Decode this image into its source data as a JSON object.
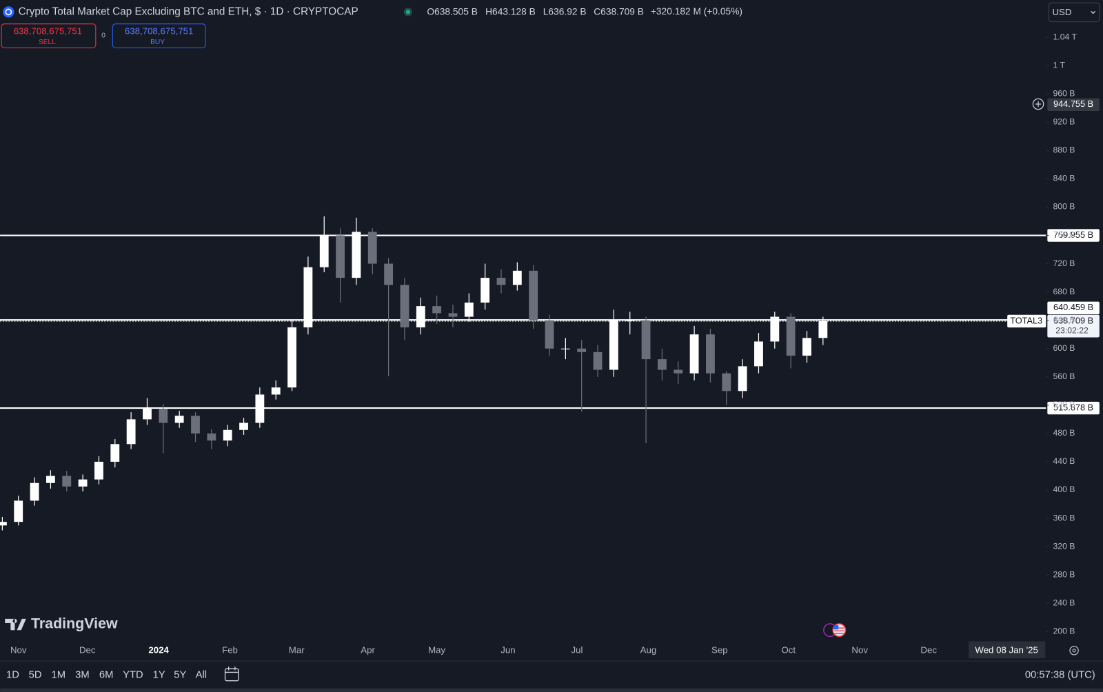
{
  "chart_data": {
    "type": "candlestick",
    "title": "Crypto Total Market Cap Excluding BTC and ETH, $ · 1D · CRYPTOCAP",
    "ohlc_legend": [
      {
        "key": "O",
        "value": "638.505 B"
      },
      {
        "key": "H",
        "value": "643.128 B"
      },
      {
        "key": "L",
        "value": "636.92 B"
      },
      {
        "key": "C",
        "value": "638.709 B"
      }
    ],
    "change": "+320.182 M (+0.05%)",
    "sell": {
      "price": "638,708,675,751",
      "label": "SELL"
    },
    "spread": "0",
    "buy": {
      "price": "638,708,675,751",
      "label": "BUY"
    },
    "currency": "USD",
    "up_color": "#ffffff",
    "down_color": "#6b6f7b",
    "x": [
      -7,
      0,
      7,
      14,
      21,
      28,
      35,
      42,
      49,
      56,
      63,
      70,
      77,
      84,
      91,
      98,
      105,
      112,
      119,
      126,
      133,
      140,
      147,
      154,
      161,
      168,
      175,
      182,
      189,
      196,
      203,
      210,
      217,
      224,
      231,
      238,
      245,
      252,
      259,
      266,
      273,
      280,
      287,
      294,
      301,
      308,
      315,
      322,
      329,
      336,
      343,
      350
    ],
    "open": [
      350,
      355,
      385,
      410,
      420,
      405,
      415,
      440,
      465,
      500,
      515,
      495,
      505,
      480,
      470,
      485,
      495,
      535,
      545,
      630,
      715,
      760,
      700,
      765,
      720,
      690,
      630,
      660,
      650,
      645,
      665,
      700,
      690,
      710,
      640,
      600,
      600,
      595,
      570,
      640,
      640,
      585,
      570,
      565,
      620,
      565,
      540,
      575,
      610,
      645,
      590,
      615
    ],
    "high": [
      362,
      392,
      418,
      428,
      427,
      422,
      448,
      472,
      510,
      530,
      522,
      512,
      510,
      486,
      492,
      502,
      545,
      555,
      640,
      730,
      787,
      770,
      785,
      770,
      728,
      700,
      672,
      675,
      662,
      678,
      720,
      712,
      722,
      718,
      648,
      615,
      612,
      605,
      655,
      652,
      645,
      600,
      582,
      632,
      628,
      568,
      585,
      622,
      652,
      650,
      625,
      645
    ],
    "low": [
      343,
      350,
      378,
      402,
      398,
      398,
      408,
      432,
      458,
      492,
      452,
      488,
      468,
      458,
      462,
      478,
      488,
      528,
      540,
      620,
      708,
      665,
      690,
      705,
      561,
      612,
      620,
      635,
      630,
      638,
      655,
      678,
      682,
      628,
      590,
      585,
      511,
      560,
      560,
      620,
      466,
      555,
      550,
      555,
      552,
      520,
      530,
      565,
      600,
      572,
      580,
      605
    ],
    "close": [
      355,
      385,
      410,
      420,
      405,
      415,
      440,
      465,
      500,
      515,
      495,
      505,
      480,
      470,
      485,
      495,
      535,
      545,
      630,
      715,
      760,
      700,
      765,
      720,
      690,
      630,
      660,
      650,
      645,
      665,
      700,
      690,
      710,
      640,
      600,
      600,
      595,
      570,
      640,
      640,
      585,
      570,
      565,
      620,
      565,
      540,
      575,
      610,
      645,
      590,
      615,
      638.709
    ],
    "xlim": [
      -8,
      447
    ],
    "xticks": [
      {
        "value": 0,
        "label": "Nov"
      },
      {
        "value": 30,
        "label": "Dec"
      },
      {
        "value": 61,
        "label": "2024"
      },
      {
        "value": 92,
        "label": "Feb"
      },
      {
        "value": 121,
        "label": "Mar"
      },
      {
        "value": 152,
        "label": "Apr"
      },
      {
        "value": 182,
        "label": "May"
      },
      {
        "value": 213,
        "label": "Jun"
      },
      {
        "value": 243,
        "label": "Jul"
      },
      {
        "value": 274,
        "label": "Aug"
      },
      {
        "value": 305,
        "label": "Sep"
      },
      {
        "value": 335,
        "label": "Oct"
      },
      {
        "value": 366,
        "label": "Nov"
      },
      {
        "value": 396,
        "label": "Dec"
      }
    ],
    "ylim": [
      158.3,
      1092.7
    ],
    "yticks": [
      {
        "value": 200,
        "label": "200 B"
      },
      {
        "value": 240,
        "label": "240 B"
      },
      {
        "value": 280,
        "label": "280 B"
      },
      {
        "value": 320,
        "label": "320 B"
      },
      {
        "value": 360,
        "label": "360 B"
      },
      {
        "value": 400,
        "label": "400 B"
      },
      {
        "value": 440,
        "label": "440 B"
      },
      {
        "value": 480,
        "label": "480 B"
      },
      {
        "value": 520,
        "label": "520 B"
      },
      {
        "value": 560,
        "label": "560 B"
      },
      {
        "value": 600,
        "label": "600 B"
      },
      {
        "value": 640,
        "label": "640 B"
      },
      {
        "value": 680,
        "label": "680 B"
      },
      {
        "value": 720,
        "label": "720 B"
      },
      {
        "value": 760,
        "label": "760 B"
      },
      {
        "value": 800,
        "label": "800 B"
      },
      {
        "value": 840,
        "label": "840 B"
      },
      {
        "value": 880,
        "label": "880 B"
      },
      {
        "value": 920,
        "label": "920 B"
      },
      {
        "value": 960,
        "label": "960 B"
      },
      {
        "value": 1000,
        "label": "1 T"
      },
      {
        "value": 1040,
        "label": "1.04 T"
      }
    ],
    "hlines": [
      {
        "value": 759.955,
        "label": "759.955 B"
      },
      {
        "value": 640.459,
        "label": "640.459 B"
      },
      {
        "value": 515.878,
        "label": "515.878 B"
      }
    ],
    "current_price": {
      "symbol": "TOTAL3",
      "value": 638.709,
      "label": "638.709 B",
      "countdown": "23:02:22"
    },
    "crosshair": {
      "value": 944.755,
      "label": "944.755 B"
    },
    "crosshair_date": "Wed 08 Jan '25",
    "brand": "TradingView",
    "ranges": [
      "1D",
      "5D",
      "1M",
      "3M",
      "6M",
      "YTD",
      "1Y",
      "5Y",
      "All"
    ],
    "clock": "00:57:38 (UTC)"
  }
}
